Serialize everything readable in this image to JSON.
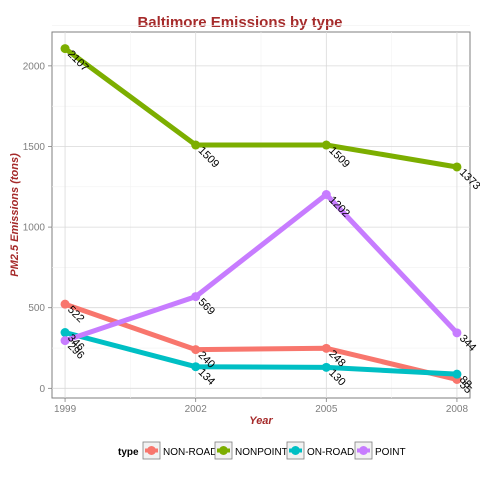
{
  "chart_data": {
    "type": "line",
    "title": "Baltimore Emissions by type",
    "xlabel": "Year",
    "ylabel": "PM2.5 Emissions (tons)",
    "x": [
      1999,
      2002,
      2005,
      2008
    ],
    "ylim": [
      -60,
      2210
    ],
    "yticks": [
      0,
      500,
      1000,
      1500,
      2000
    ],
    "grid": true,
    "legend": {
      "title": "type",
      "position": "bottom"
    },
    "series": [
      {
        "name": "NON-ROAD",
        "color": "#f8766d",
        "values": [
          522,
          240,
          248,
          55
        ],
        "labels": [
          "522",
          "240",
          "248",
          "55"
        ]
      },
      {
        "name": "NONPOINT",
        "color": "#7cae00",
        "values": [
          2107,
          1509,
          1509,
          1373
        ],
        "labels": [
          "2107",
          "1509",
          "1509",
          "1373"
        ]
      },
      {
        "name": "ON-ROAD",
        "color": "#00bfc4",
        "values": [
          346,
          134,
          130,
          88
        ],
        "labels": [
          "346",
          "134",
          "130",
          "88"
        ]
      },
      {
        "name": "POINT",
        "color": "#c77cff",
        "values": [
          296,
          569,
          1202,
          344
        ],
        "labels": [
          "296",
          "569",
          "1202",
          "344"
        ]
      }
    ]
  }
}
